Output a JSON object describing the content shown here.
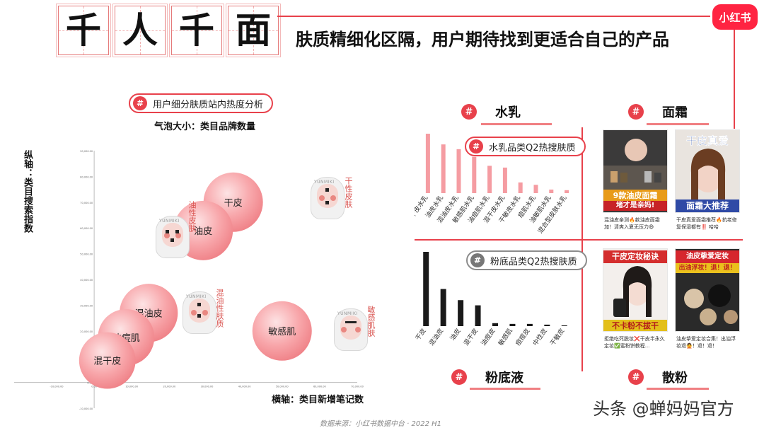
{
  "header": {
    "title_chars": [
      "千",
      "人",
      "千",
      "面"
    ],
    "headline": "肤质精细化区隔，用户期待找到更适合自己的产品",
    "logo": "小红书",
    "accent": "#e8414b"
  },
  "bubble_chart": {
    "pill": "用户细分肤质站内热度分析",
    "subtitle": "气泡大小：类目品牌数量",
    "ylabel": "纵轴：类目搜索指数",
    "xlabel": "横轴：类目新增笔记数",
    "faces": [
      {
        "label": "干性皮肤",
        "brand": "YUNMIKI"
      },
      {
        "label": "油性皮肤",
        "brand": "YUNMIKI"
      },
      {
        "label": "混油性肤质",
        "brand": "YUNMIKI"
      },
      {
        "label": "敏感肌肤",
        "brand": "YUNMIKI"
      }
    ]
  },
  "panels": {
    "water_milk": {
      "title": "水乳",
      "chart_title": "水乳品类Q2热搜肤质"
    },
    "cream": {
      "title": "面霜",
      "thumbs": [
        {
          "banner": "9款油皮面霜",
          "sub": "堵才是亲妈!",
          "caption": "混油皮亲测🔥款油皮面霜加！清爽入夏无压力😄"
        },
        {
          "banner": "干皮真爱",
          "sub": "面霜大推荐",
          "caption": "干皮真爱面霜推荐🔥抗老修复保湿都有‼️ 哈哈"
        }
      ]
    },
    "foundation": {
      "title": "粉底液",
      "chart_title": "粉底品类Q2热搜肤质"
    },
    "powder": {
      "title": "散粉",
      "thumbs": [
        {
          "banner": "干皮定妆秘诀",
          "sub": "不卡粉不拔干",
          "caption": "拒绝吃死脱妆❌干皮半永久定妆✅蜜粉饼教程..."
        },
        {
          "banner": "油皮挚爱定妆",
          "sub": "出油浮妆！退！退！",
          "caption": "油皮挚爱定妆合集！出油浮妆退🙅！退！退！"
        }
      ]
    }
  },
  "footer": {
    "source": "数据来源：小红书数据中台 · 2022 H1",
    "watermark": "头条 @蝉妈妈官方"
  },
  "chart_data": [
    {
      "type": "scatter",
      "title": "用户细分肤质站内热度分析",
      "subtitle": "气泡大小：类目品牌数量",
      "xlabel": "横轴：类目新增笔记数",
      "ylabel": "纵轴：类目搜索指数",
      "xlim": [
        -10000,
        70000
      ],
      "ylim": [
        -10000,
        90000
      ],
      "x_ticks": [
        "-10,000.00",
        "0.00",
        "10,000.00",
        "20,000.00",
        "30,000.00",
        "40,000.00",
        "50,000.00",
        "60,000.00",
        "70,000.00"
      ],
      "y_ticks": [
        "-10,000.00",
        "0.00",
        "10,000.00",
        "20,000.00",
        "30,000.00",
        "40,000.00",
        "50,000.00",
        "60,000.00",
        "70,000.00",
        "80,000.00",
        "90,000.00"
      ],
      "points": [
        {
          "label": "干皮",
          "x": 37000,
          "y": 70000,
          "size": 1.0
        },
        {
          "label": "油皮",
          "x": 29000,
          "y": 59000,
          "size": 1.0
        },
        {
          "label": "混油皮",
          "x": 14500,
          "y": 27000,
          "size": 0.98
        },
        {
          "label": "油痘肌",
          "x": 8500,
          "y": 17500,
          "size": 0.95
        },
        {
          "label": "混干皮",
          "x": 3500,
          "y": 8500,
          "size": 0.95
        },
        {
          "label": "敏感肌",
          "x": 50000,
          "y": 20000,
          "size": 1.0
        }
      ]
    },
    {
      "type": "bar",
      "title": "水乳品类Q2热搜肤质",
      "categories": [
        "干皮水乳",
        "油皮水乳",
        "混油皮水乳",
        "敏感肌水乳",
        "油痘肌水乳",
        "混干皮水乳",
        "干敏皮水乳",
        "痘肌水乳",
        "油敏肌水乳",
        "混合型皮肤水乳"
      ],
      "values": [
        100,
        82,
        74,
        61,
        46,
        43,
        18,
        14,
        6,
        5
      ],
      "color": "#f59ca2"
    },
    {
      "type": "bar",
      "title": "粉底品类Q2热搜肤质",
      "categories": [
        "干皮",
        "混油皮",
        "油皮",
        "混干皮",
        "油痘皮",
        "敏感肌",
        "痘痘皮",
        "中性皮",
        "干敏皮"
      ],
      "values": [
        100,
        50,
        35,
        28,
        4,
        3,
        3,
        2,
        1
      ],
      "color": "#1a1a1a"
    }
  ]
}
